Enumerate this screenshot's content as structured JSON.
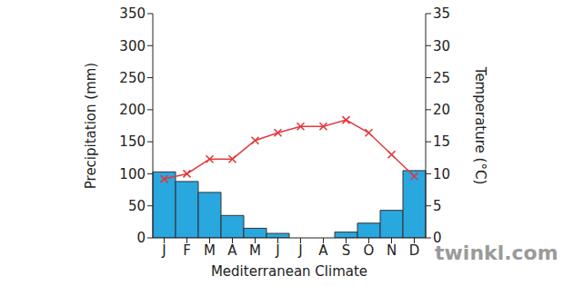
{
  "chart_data": {
    "type": "bar",
    "title": "Mediterranean Climate",
    "categories": [
      "J",
      "F",
      "M",
      "A",
      "M",
      "J",
      "J",
      "A",
      "S",
      "O",
      "N",
      "D"
    ],
    "y_label": "Precipitation (mm)",
    "y2_label": "Temperature (°C)",
    "ylim": [
      0,
      350
    ],
    "yticks": [
      0,
      50,
      100,
      150,
      200,
      250,
      300,
      350
    ],
    "y2lim": [
      0,
      35
    ],
    "y2ticks": [
      0,
      5,
      10,
      15,
      20,
      25,
      30,
      35
    ],
    "grid": false,
    "annotations": [
      "twinkl.com"
    ],
    "series": [
      {
        "type": "bar",
        "color": "#29a7df",
        "values": [
          103,
          88,
          71,
          35,
          15,
          7,
          0,
          0,
          9,
          23,
          43,
          105
        ]
      },
      {
        "type": "line",
        "axis": "y2",
        "color": "#e03a3e",
        "marker": "x",
        "values": [
          9.2,
          10,
          12.3,
          12.3,
          15.2,
          16.4,
          17.4,
          17.4,
          18.4,
          16.4,
          13,
          9.6
        ]
      }
    ]
  }
}
